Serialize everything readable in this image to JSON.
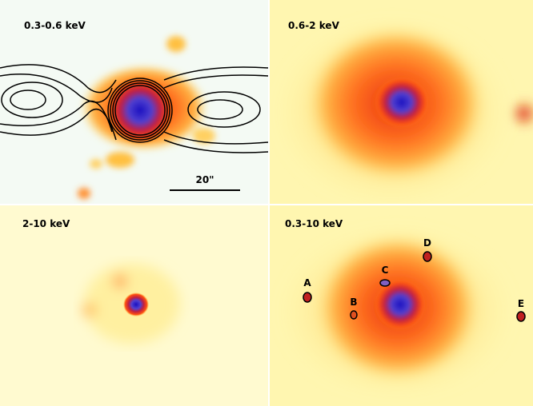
{
  "panels": [
    {
      "label": "0.3-0.6 keV",
      "scale_bar": "20\""
    },
    {
      "label": "0.6-2 keV"
    },
    {
      "label": "2-10 keV"
    },
    {
      "label": "0.3-10 keV",
      "sources": [
        "A",
        "B",
        "C",
        "D",
        "E"
      ]
    }
  ]
}
